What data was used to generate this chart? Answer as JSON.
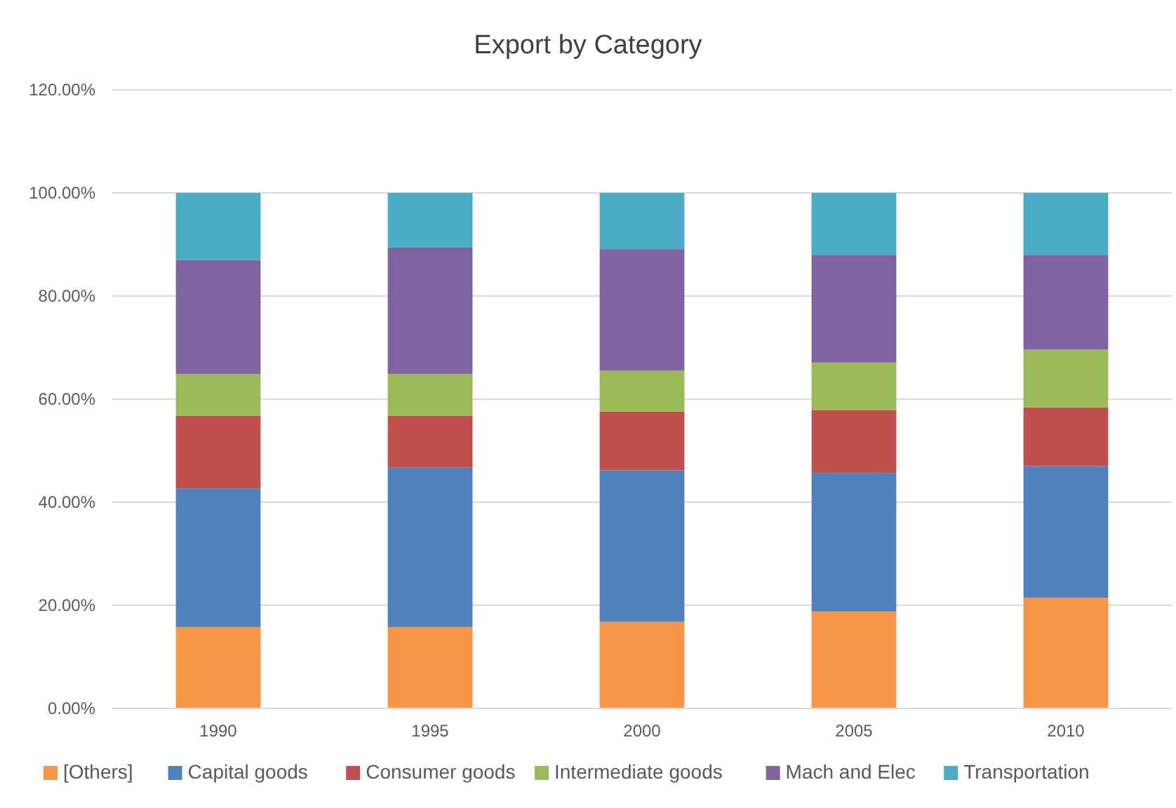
{
  "chart_data": {
    "type": "bar",
    "title": "Export by Category",
    "categories": [
      "1990",
      "1995",
      "2000",
      "2005",
      "2010"
    ],
    "stacked": true,
    "series": [
      {
        "name": "[Others]",
        "color": "#f79646",
        "values": [
          15.8,
          15.8,
          16.8,
          18.8,
          21.5
        ]
      },
      {
        "name": "Capital goods",
        "color": "#4f81bd",
        "values": [
          26.9,
          30.9,
          29.4,
          26.9,
          25.5
        ]
      },
      {
        "name": "Consumer goods",
        "color": "#c0504d",
        "values": [
          14.1,
          10.1,
          11.4,
          12.2,
          11.4
        ]
      },
      {
        "name": "Intermediate goods",
        "color": "#9bbb59",
        "values": [
          8.1,
          8.1,
          7.9,
          9.2,
          11.2
        ]
      },
      {
        "name": "Mach and Elec",
        "color": "#8064a2",
        "values": [
          22.1,
          24.5,
          23.6,
          20.9,
          18.4
        ]
      },
      {
        "name": "Transportation",
        "color": "#4bacc6",
        "values": [
          13.0,
          10.6,
          10.9,
          12.0,
          12.0
        ]
      }
    ],
    "ylim": [
      0,
      120
    ],
    "yticks": [
      {
        "value": 0,
        "label": "0.00%"
      },
      {
        "value": 20,
        "label": "20.00%"
      },
      {
        "value": 40,
        "label": "40.00%"
      },
      {
        "value": 60,
        "label": "60.00%"
      },
      {
        "value": 80,
        "label": "80.00%"
      },
      {
        "value": 100,
        "label": "100.00%"
      },
      {
        "value": 120,
        "label": "120.00%"
      }
    ],
    "grid": "y",
    "legend": "bottom"
  }
}
